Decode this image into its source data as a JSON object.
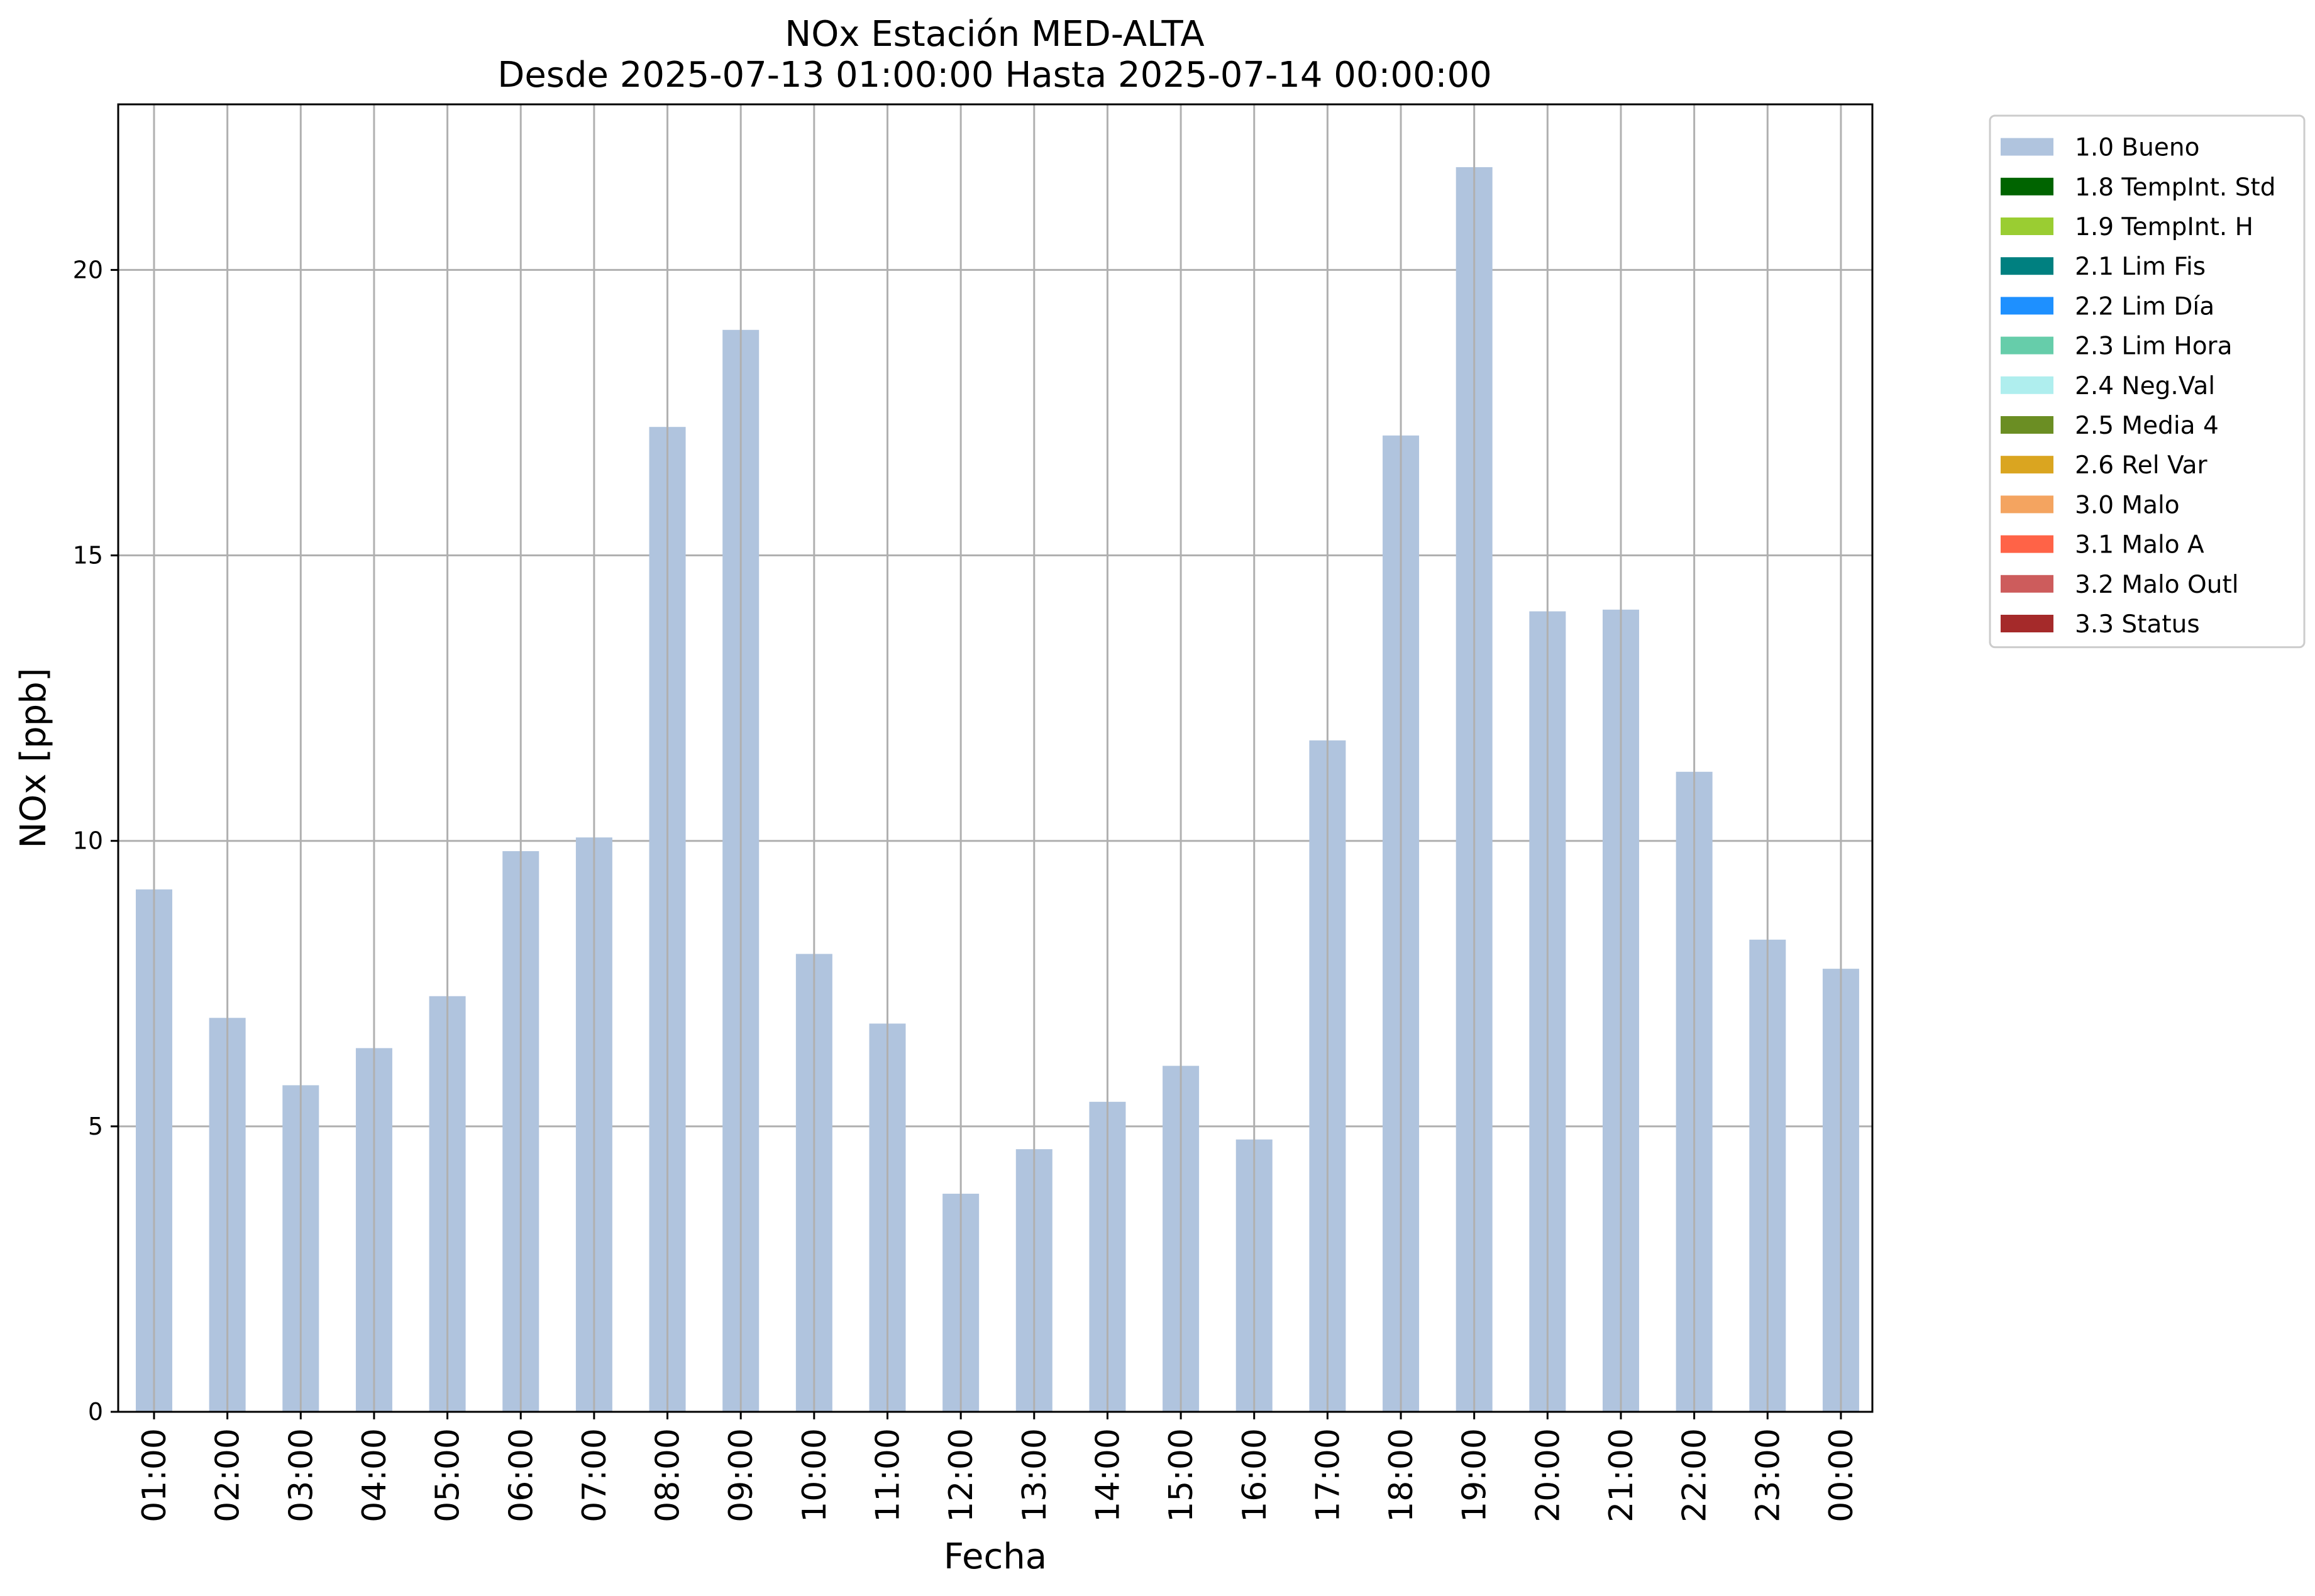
{
  "chart_data": {
    "type": "bar",
    "title": "NOx Estación MED-ALTA",
    "subtitle": "Desde 2025-07-13 01:00:00 Hasta 2025-07-14 00:00:00",
    "xlabel": "Fecha",
    "ylabel": "NOx [ppb]",
    "ylim": [
      0,
      22.9
    ],
    "yticks": [
      0,
      5,
      10,
      15,
      20
    ],
    "grid": true,
    "legend_position": "outside-top-right",
    "categories": [
      "01:00",
      "02:00",
      "03:00",
      "04:00",
      "05:00",
      "06:00",
      "07:00",
      "08:00",
      "09:00",
      "10:00",
      "11:00",
      "12:00",
      "13:00",
      "14:00",
      "15:00",
      "16:00",
      "17:00",
      "18:00",
      "19:00",
      "20:00",
      "21:00",
      "22:00",
      "23:00",
      "00:00"
    ],
    "series": [
      {
        "name": "1.0 Bueno",
        "color": "#b0c4de",
        "values": [
          9.15,
          6.9,
          5.72,
          6.37,
          7.28,
          9.82,
          10.06,
          17.25,
          18.95,
          8.02,
          6.8,
          3.82,
          4.6,
          5.43,
          6.06,
          4.77,
          11.76,
          17.1,
          21.8,
          14.02,
          14.05,
          11.21,
          8.27,
          7.76
        ]
      }
    ],
    "legend": [
      {
        "label": "1.0 Bueno",
        "color": "#b0c4de"
      },
      {
        "label": "1.8 TempInt. Std",
        "color": "#006400"
      },
      {
        "label": "1.9 TempInt. H",
        "color": "#9acd32"
      },
      {
        "label": "2.1 Lim Fis",
        "color": "#008080"
      },
      {
        "label": "2.2 Lim Día",
        "color": "#1e90ff"
      },
      {
        "label": "2.3 Lim Hora",
        "color": "#66cdaa"
      },
      {
        "label": "2.4 Neg.Val",
        "color": "#afeeee"
      },
      {
        "label": "2.5 Media 4",
        "color": "#6b8e23"
      },
      {
        "label": "2.6 Rel Var",
        "color": "#daa520"
      },
      {
        "label": "3.0 Malo",
        "color": "#f4a460"
      },
      {
        "label": "3.1 Malo A",
        "color": "#ff6347"
      },
      {
        "label": "3.2 Malo Outl",
        "color": "#cd5c5c"
      },
      {
        "label": "3.3 Status",
        "color": "#a52a2a"
      }
    ]
  }
}
